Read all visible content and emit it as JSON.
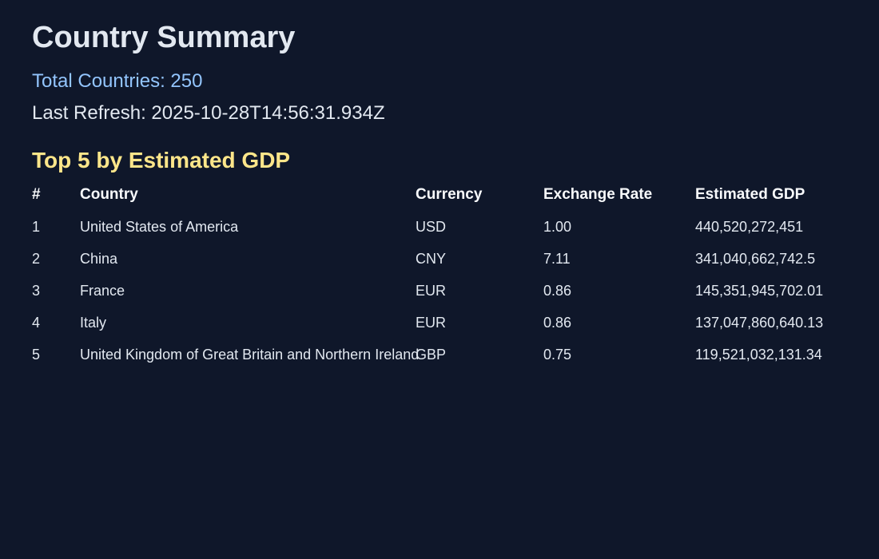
{
  "header": {
    "title": "Country Summary",
    "total_countries": "Total Countries: 250",
    "last_refresh": "Last Refresh: 2025-10-28T14:56:31.934Z"
  },
  "section": {
    "title": "Top 5 by Estimated GDP"
  },
  "table": {
    "columns": {
      "rank": "#",
      "country": "Country",
      "currency": "Currency",
      "rate": "Exchange Rate",
      "gdp": "Estimated GDP"
    },
    "rows": [
      {
        "rank": "1",
        "country": "United States of America",
        "currency": "USD",
        "rate": "1.00",
        "gdp": "440,520,272,451"
      },
      {
        "rank": "2",
        "country": "China",
        "currency": "CNY",
        "rate": "7.11",
        "gdp": "341,040,662,742.5"
      },
      {
        "rank": "3",
        "country": "France",
        "currency": "EUR",
        "rate": "0.86",
        "gdp": "145,351,945,702.01"
      },
      {
        "rank": "4",
        "country": "Italy",
        "currency": "EUR",
        "rate": "0.86",
        "gdp": "137,047,860,640.13"
      },
      {
        "rank": "5",
        "country": "United Kingdom of Great Britain and Northern Ireland",
        "currency": "GBP",
        "rate": "0.75",
        "gdp": "119,521,032,131.34"
      }
    ]
  }
}
